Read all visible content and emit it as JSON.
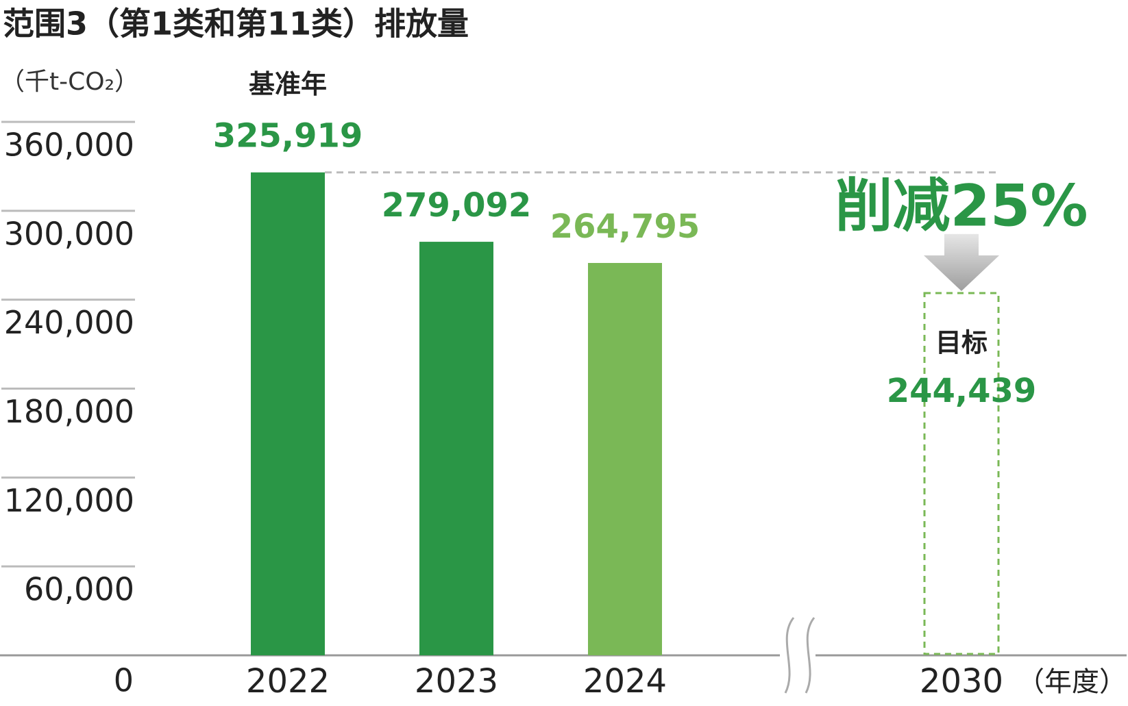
{
  "chart_data": {
    "type": "bar",
    "title": "范围3（第1类和第11类）排放量",
    "y_label": "（千t-CO₂）",
    "x_label": "（年度）",
    "categories": [
      "2022",
      "2023",
      "2024",
      "2030"
    ],
    "values": [
      325919,
      279092,
      264795,
      244439
    ],
    "value_labels": [
      "325,919",
      "279,092",
      "264,795",
      "244,439"
    ],
    "colors": [
      "#2a9646",
      "#2a9646",
      "#7ab856",
      "#7ab856"
    ],
    "label_colors": [
      "#2a9646",
      "#2a9646",
      "#7ab856",
      "#2a9646"
    ],
    "bar_styles": [
      "solid",
      "solid",
      "solid",
      "dashed"
    ],
    "annotations": {
      "base_year": "基准年",
      "target": "目标",
      "reduction": "削减25%"
    },
    "ylim": [
      0,
      360000
    ],
    "yticks": [
      0,
      {
        "value": 60000,
        "label": "60,000"
      },
      {
        "value": 120000,
        "label": "120,000"
      },
      {
        "value": 180000,
        "label": "180,000"
      },
      {
        "value": 240000,
        "label": "240,000"
      },
      {
        "value": 300000,
        "label": "300,000"
      },
      {
        "value": 360000,
        "label": "360,000"
      }
    ],
    "axis_break": true
  }
}
